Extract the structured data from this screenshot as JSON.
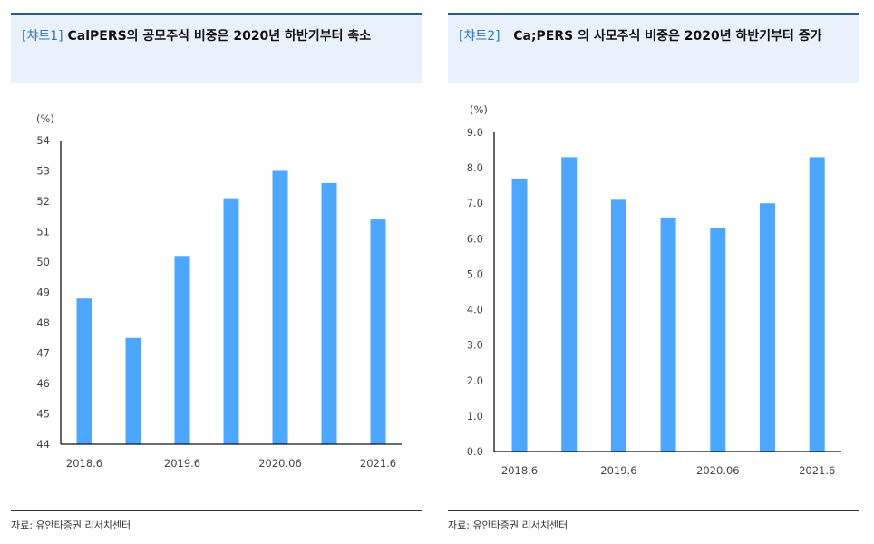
{
  "colors": {
    "bar": "#4da6ff",
    "header_bg": "#e9f2fb",
    "header_border": "#2e5a88",
    "tag": "#2f74c0"
  },
  "source": "자료: 유안타증권 리서치센터",
  "chart_data": [
    {
      "type": "bar",
      "tag": "[챠트1]",
      "title": "CalPERS의 공모주식 비중은 2020년 하반기부터 축소",
      "ylabel": "(%)",
      "categories": [
        "2018.6",
        "",
        "2019.6",
        "",
        "2020.06",
        "",
        "2021.6"
      ],
      "values": [
        48.8,
        47.5,
        50.2,
        52.1,
        53.0,
        52.6,
        51.4
      ],
      "ylim": [
        44,
        54
      ],
      "yticks": [
        "44",
        "45",
        "46",
        "47",
        "48",
        "49",
        "50",
        "51",
        "52",
        "53",
        "54"
      ],
      "grid": false
    },
    {
      "type": "bar",
      "tag": "[챠트2]",
      "title": "Ca;PERS 의 사모주식 비중은 2020년 하반기부터 증가",
      "ylabel": "(%)",
      "categories": [
        "2018.6",
        "",
        "2019.6",
        "",
        "2020.06",
        "",
        "2021.6"
      ],
      "values": [
        7.7,
        8.3,
        7.1,
        6.6,
        6.3,
        7.0,
        8.3
      ],
      "ylim": [
        0,
        9
      ],
      "yticks": [
        "0.0",
        "1.0",
        "2.0",
        "3.0",
        "4.0",
        "5.0",
        "6.0",
        "7.0",
        "8.0",
        "9.0"
      ],
      "grid": false
    }
  ]
}
